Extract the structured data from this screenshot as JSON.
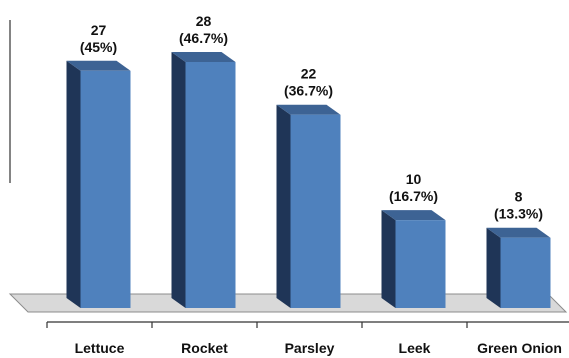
{
  "chart_data": {
    "type": "bar",
    "categories": [
      "Lettuce",
      "Rocket",
      "Parsley",
      "Leek",
      "Green Onion"
    ],
    "values": [
      27,
      28,
      22,
      10,
      8
    ],
    "percent_labels": [
      "(45%)",
      "(46.7%)",
      "(36.7%)",
      "(16.7%)",
      "(13.3%)"
    ],
    "value_labels": [
      "27",
      "28",
      "22",
      "10",
      "8"
    ],
    "title": "",
    "xlabel": "",
    "ylabel": "",
    "ylim": [
      0,
      30
    ],
    "grid": false,
    "legend": "none",
    "three_d": true,
    "colors": {
      "front": "#4F81BD",
      "side": "#1F3557",
      "top": "#3D6394",
      "floor": "#D9D9D9",
      "floor_stroke": "#8C8C8C",
      "axis": "#333333"
    }
  }
}
